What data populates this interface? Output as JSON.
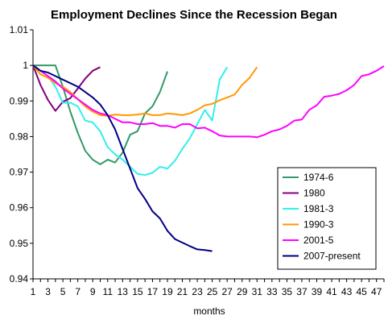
{
  "chart_data": {
    "type": "line",
    "title": "Employment Declines Since the Recession Began",
    "xlabel": "months",
    "ylabel": "",
    "ylim": [
      0.94,
      1.01
    ],
    "xlim": [
      1,
      48
    ],
    "yticks": [
      "1.01",
      "1",
      "0.99",
      "0.98",
      "0.97",
      "0.96",
      "0.95",
      "0.94"
    ],
    "ytick_values": [
      1.01,
      1.0,
      0.99,
      0.98,
      0.97,
      0.96,
      0.95,
      0.94
    ],
    "xticks": [
      "1",
      "3",
      "5",
      "7",
      "9",
      "11",
      "13",
      "15",
      "17",
      "19",
      "21",
      "23",
      "25",
      "27",
      "29",
      "31",
      "33",
      "35",
      "37",
      "39",
      "41",
      "43",
      "45",
      "47"
    ],
    "xtick_values": [
      1,
      3,
      5,
      7,
      9,
      11,
      13,
      15,
      17,
      19,
      21,
      23,
      25,
      27,
      29,
      31,
      33,
      35,
      37,
      39,
      41,
      43,
      45,
      47
    ],
    "grid": false,
    "legend_position": "bottom-right",
    "series": [
      {
        "name": "1974-6",
        "color": "#339966",
        "x": [
          1,
          2,
          3,
          4,
          5,
          6,
          7,
          8,
          9,
          10,
          11,
          12,
          13,
          14,
          15,
          16,
          17,
          18,
          19
        ],
        "values": [
          1.0,
          1.0,
          1.0,
          1.0,
          0.994,
          0.987,
          0.981,
          0.976,
          0.9735,
          0.9722,
          0.9735,
          0.9727,
          0.9755,
          0.9805,
          0.9815,
          0.9865,
          0.9885,
          0.9925,
          0.9983
        ]
      },
      {
        "name": "1980",
        "color": "#800080",
        "x": [
          1,
          2,
          3,
          4,
          5,
          6,
          7,
          8,
          9,
          10
        ],
        "values": [
          1.0,
          0.9945,
          0.9903,
          0.9872,
          0.9898,
          0.9908,
          0.9935,
          0.9963,
          0.9985,
          0.9995
        ]
      },
      {
        "name": "1981-3",
        "color": "#33eeee",
        "x": [
          1,
          2,
          3,
          4,
          5,
          6,
          7,
          8,
          9,
          10,
          11,
          12,
          13,
          14,
          15,
          16,
          17,
          18,
          19,
          20,
          21,
          22,
          23,
          24,
          25,
          26,
          27
        ],
        "values": [
          1.0,
          0.9985,
          0.997,
          0.994,
          0.9895,
          0.9895,
          0.9885,
          0.9845,
          0.984,
          0.9815,
          0.977,
          0.975,
          0.9735,
          0.9715,
          0.9695,
          0.9692,
          0.9698,
          0.9715,
          0.971,
          0.9732,
          0.9765,
          0.9795,
          0.9835,
          0.9875,
          0.9845,
          0.996,
          0.9995
        ]
      },
      {
        "name": "1990-3",
        "color": "#ff9900",
        "x": [
          1,
          2,
          3,
          4,
          5,
          6,
          7,
          8,
          9,
          10,
          11,
          12,
          13,
          14,
          15,
          16,
          17,
          18,
          19,
          20,
          21,
          22,
          23,
          24,
          25,
          26,
          27,
          28,
          29,
          30,
          31
        ],
        "values": [
          1.0,
          0.9975,
          0.9965,
          0.995,
          0.994,
          0.9925,
          0.9905,
          0.9885,
          0.987,
          0.986,
          0.9858,
          0.9862,
          0.986,
          0.986,
          0.9862,
          0.9865,
          0.986,
          0.986,
          0.9865,
          0.9863,
          0.986,
          0.9865,
          0.9875,
          0.9888,
          0.9892,
          0.9902,
          0.991,
          0.9918,
          0.9945,
          0.9965,
          0.9995
        ]
      },
      {
        "name": "2001-5",
        "color": "#ff00ff",
        "x": [
          1,
          2,
          3,
          4,
          5,
          6,
          7,
          8,
          9,
          10,
          11,
          12,
          13,
          14,
          15,
          16,
          17,
          18,
          19,
          20,
          21,
          22,
          23,
          24,
          25,
          26,
          27,
          28,
          29,
          30,
          31,
          32,
          33,
          34,
          35,
          36,
          37,
          38,
          39,
          40,
          41,
          42,
          43,
          44,
          45,
          46,
          47,
          48
        ],
        "values": [
          1.0,
          0.9985,
          0.997,
          0.9955,
          0.9935,
          0.992,
          0.9905,
          0.989,
          0.9875,
          0.9865,
          0.986,
          0.985,
          0.984,
          0.984,
          0.9835,
          0.9835,
          0.9838,
          0.983,
          0.983,
          0.9825,
          0.9835,
          0.9835,
          0.9823,
          0.9825,
          0.9815,
          0.9803,
          0.98,
          0.98,
          0.98,
          0.98,
          0.9798,
          0.9805,
          0.9815,
          0.982,
          0.983,
          0.9845,
          0.9848,
          0.9875,
          0.9888,
          0.9912,
          0.9915,
          0.992,
          0.993,
          0.9945,
          0.997,
          0.9975,
          0.9985,
          0.9998
        ]
      },
      {
        "name": "2007-present",
        "color": "#000080",
        "x": [
          1,
          2,
          3,
          4,
          5,
          6,
          7,
          8,
          9,
          10,
          11,
          12,
          13,
          14,
          15,
          16,
          17,
          18,
          19,
          20,
          21,
          22,
          23,
          24,
          25
        ],
        "values": [
          1.0,
          0.9985,
          0.998,
          0.997,
          0.996,
          0.995,
          0.994,
          0.9925,
          0.991,
          0.989,
          0.986,
          0.982,
          0.9765,
          0.971,
          0.9655,
          0.9625,
          0.959,
          0.957,
          0.9535,
          0.9512,
          0.9502,
          0.9492,
          0.9483,
          0.9481,
          0.9478
        ]
      }
    ]
  }
}
